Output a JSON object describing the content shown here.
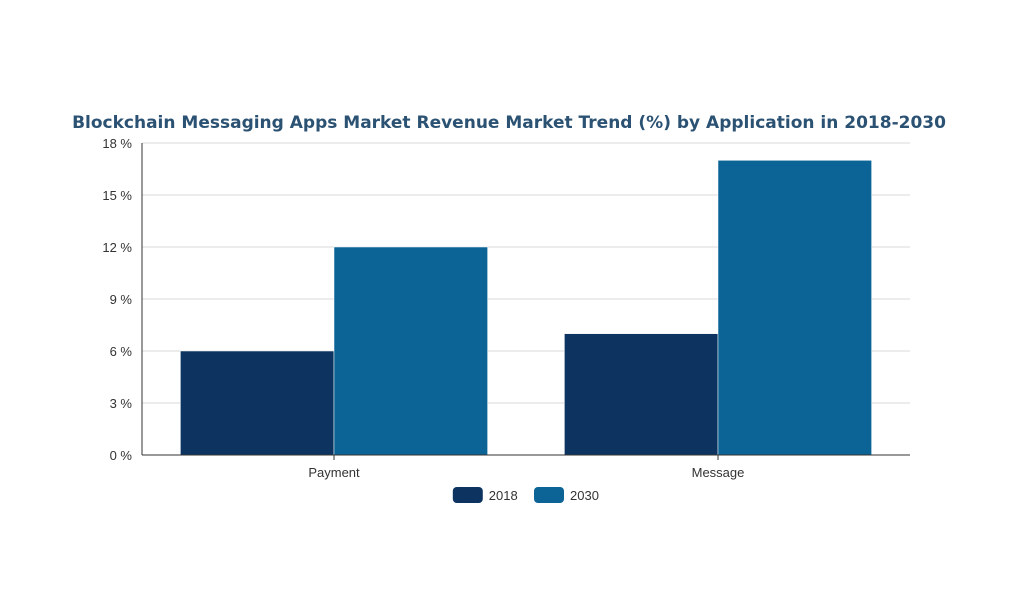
{
  "chart_data": {
    "type": "bar",
    "title": "Blockchain Messaging Apps Market Revenue Market Trend (%) by Application in 2018-2030",
    "categories": [
      "Payment",
      "Message"
    ],
    "series": [
      {
        "name": "2018",
        "values": [
          6,
          7
        ],
        "color": "#0d3461"
      },
      {
        "name": "2030",
        "values": [
          12,
          17
        ],
        "color": "#0b6396"
      }
    ],
    "yticks": [
      0,
      3,
      6,
      9,
      12,
      15,
      18
    ],
    "ytick_suffix": " %",
    "ylim": [
      0,
      18
    ],
    "grid": true,
    "legend_position": "bottom-center",
    "xlabel": "",
    "ylabel": ""
  }
}
